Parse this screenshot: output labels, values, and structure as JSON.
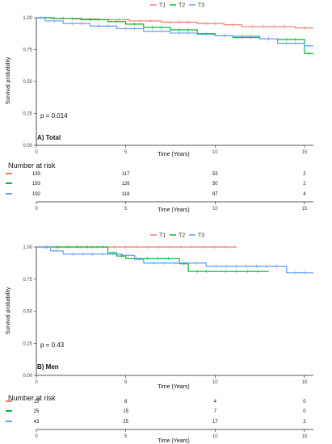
{
  "legend": [
    "T1",
    "T2",
    "T3"
  ],
  "colors": {
    "T1": "#F8766D",
    "T2": "#00BA38",
    "T3": "#619CFF"
  },
  "ylabel": "Survival probability",
  "xlabel": "Time (Years)",
  "risk_title": "Number at risk",
  "chart_data": [
    {
      "type": "line",
      "step": true,
      "panel": "A) Total",
      "p_value": "p = 0.014",
      "xlabel": "Time (Years)",
      "ylabel": "Survival probability",
      "xlim": [
        0,
        15.5
      ],
      "ylim": [
        0,
        1
      ],
      "x_ticks": [
        "0",
        "5",
        "10",
        "15"
      ],
      "y_ticks": [
        "0.00",
        "0.25",
        "0.50",
        "0.75",
        "1.00"
      ],
      "legend_position": "top",
      "series": [
        {
          "name": "T1",
          "color": "#F8766D",
          "x": [
            0,
            0.8,
            2,
            3.5,
            5.2,
            7,
            9,
            10.5,
            11.5,
            14.5,
            15.5
          ],
          "y": [
            1.0,
            0.995,
            0.99,
            0.985,
            0.975,
            0.965,
            0.955,
            0.945,
            0.93,
            0.92,
            0.92
          ]
        },
        {
          "name": "T2",
          "color": "#00BA38",
          "x": [
            0,
            1,
            2.5,
            4,
            5,
            6,
            7.5,
            9,
            10,
            11,
            12.5,
            13.5,
            15,
            15.5
          ],
          "y": [
            1.0,
            0.995,
            0.985,
            0.97,
            0.95,
            0.925,
            0.905,
            0.875,
            0.86,
            0.845,
            0.835,
            0.83,
            0.72,
            0.72
          ]
        },
        {
          "name": "T3",
          "color": "#619CFF",
          "x": [
            0,
            0.5,
            1.5,
            3,
            4.5,
            6,
            7.5,
            9,
            10,
            11,
            12.5,
            13.5,
            15,
            15.5
          ],
          "y": [
            1.0,
            0.975,
            0.955,
            0.935,
            0.915,
            0.895,
            0.88,
            0.87,
            0.86,
            0.855,
            0.835,
            0.8,
            0.78,
            0.78
          ]
        }
      ],
      "risk_table": {
        "x": [
          0,
          5,
          10,
          15
        ],
        "rows": [
          {
            "name": "T1",
            "values": [
              "193",
              "117",
              "53",
              "2"
            ]
          },
          {
            "name": "T2",
            "values": [
              "193",
              "126",
              "50",
              "2"
            ]
          },
          {
            "name": "T3",
            "values": [
              "192",
              "118",
              "87",
              "4"
            ]
          }
        ]
      }
    },
    {
      "type": "line",
      "step": true,
      "panel": "B) Men",
      "p_value": "p = 0.43",
      "xlabel": "Time (Years)",
      "ylabel": "Survival probability",
      "xlim": [
        0,
        15.5
      ],
      "ylim": [
        0,
        1
      ],
      "x_ticks": [
        "0",
        "5",
        "10",
        "15"
      ],
      "y_ticks": [
        "0.00",
        "0.25",
        "0.50",
        "0.75",
        "1.00"
      ],
      "legend_position": "top",
      "series": [
        {
          "name": "T1",
          "color": "#F8766D",
          "x": [
            0,
            11.2
          ],
          "y": [
            1.0,
            1.0
          ]
        },
        {
          "name": "T2",
          "color": "#00BA38",
          "x": [
            0,
            4,
            4.5,
            5,
            8,
            8.5,
            10,
            13
          ],
          "y": [
            1.0,
            0.955,
            0.93,
            0.91,
            0.87,
            0.81,
            0.81,
            0.81
          ]
        },
        {
          "name": "T3",
          "color": "#619CFF",
          "x": [
            0,
            0.8,
            1.5,
            4.8,
            5.5,
            6,
            9.5,
            14,
            15.5
          ],
          "y": [
            1.0,
            0.97,
            0.945,
            0.935,
            0.905,
            0.875,
            0.85,
            0.8,
            0.8
          ]
        }
      ],
      "risk_table": {
        "x": [
          0,
          5,
          10,
          15
        ],
        "rows": [
          {
            "name": "T1",
            "values": [
              "13",
              "8",
              "4",
              "0"
            ]
          },
          {
            "name": "T2",
            "values": [
              "25",
              "15",
              "7",
              "0"
            ]
          },
          {
            "name": "T3",
            "values": [
              "43",
              "25",
              "17",
              "2"
            ]
          }
        ]
      }
    }
  ]
}
